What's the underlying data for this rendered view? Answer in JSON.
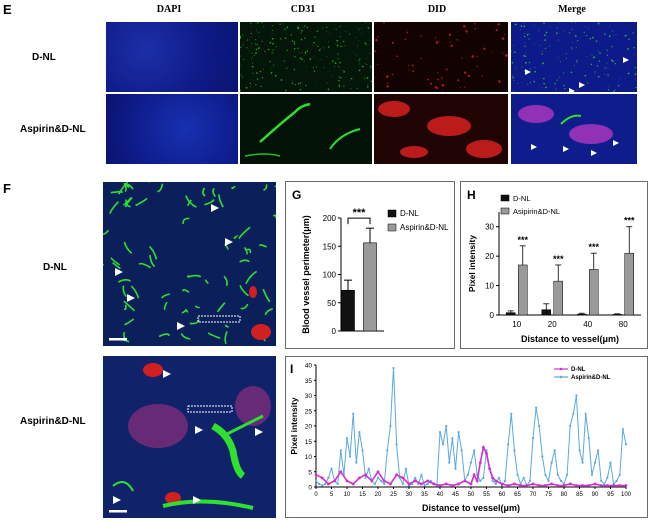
{
  "panels": {
    "E": {
      "letter": "E",
      "columns": [
        "DAPI",
        "CD31",
        "DID",
        "Merge"
      ],
      "rows": [
        "D-NL",
        "Aspirin&D-NL"
      ]
    },
    "F": {
      "letter": "F",
      "rows": [
        "D-NL",
        "Aspirin&D-NL"
      ]
    },
    "G": {
      "letter": "G"
    },
    "H": {
      "letter": "H"
    },
    "I": {
      "letter": "I"
    }
  },
  "colors": {
    "black_bar": "#111111",
    "gray_bar": "#9a9a9a",
    "dnl_line": "#d12fd1",
    "aspirin_line": "#5aa9e0",
    "dapi": "#1a1ab0",
    "cd31": "#1fbf1f",
    "did": "#c81818"
  },
  "chart_data": [
    {
      "id": "G",
      "type": "bar",
      "categories": [
        "D-NL",
        "Aspirin&D-NL"
      ],
      "values": [
        72,
        156
      ],
      "errors": [
        18,
        26
      ],
      "ylabel": "Blood vessel perimeter(μm)",
      "ylim": [
        0,
        200
      ],
      "yticks": [
        "0",
        "50",
        "100",
        "150",
        "200"
      ],
      "legend": [
        "D-NL",
        "Aspirin&D-NL"
      ],
      "significance": "***"
    },
    {
      "id": "H",
      "type": "bar",
      "categories": [
        "10",
        "20",
        "40",
        "80"
      ],
      "series": [
        {
          "name": "D-NL",
          "values": [
            0.8,
            1.8,
            0.3,
            0.2
          ],
          "errors": [
            0.6,
            2.0,
            0.3,
            0.2
          ]
        },
        {
          "name": "Asipirin&D-NL",
          "values": [
            17,
            11.5,
            15.5,
            21
          ],
          "errors": [
            6.5,
            5.5,
            5.5,
            9
          ]
        }
      ],
      "significance": [
        "***",
        "***",
        "***",
        "***"
      ],
      "xlabel": "Distance to vessel(μm)",
      "ylabel": "Pixel intensity",
      "ylim": [
        0,
        35
      ],
      "yticks": [
        "0",
        "10",
        "20",
        "30"
      ]
    },
    {
      "id": "I",
      "type": "line",
      "xlabel": "Distance to vessel(μm)",
      "ylabel": "Pixel intensity",
      "xlim": [
        0,
        100
      ],
      "ylim": [
        0,
        40
      ],
      "xticks": [
        "0",
        "5",
        "10",
        "15",
        "20",
        "25",
        "30",
        "35",
        "40",
        "45",
        "50",
        "55",
        "60",
        "65",
        "70",
        "75",
        "80",
        "85",
        "90",
        "95",
        "100"
      ],
      "yticks": [
        "0",
        "5",
        "10",
        "15",
        "20",
        "25",
        "30",
        "35",
        "40"
      ],
      "series": [
        {
          "name": "D-NL",
          "x": [
            0,
            2,
            4,
            6,
            8,
            10,
            12,
            14,
            16,
            18,
            20,
            22,
            24,
            26,
            28,
            30,
            32,
            34,
            36,
            38,
            40,
            42,
            44,
            46,
            48,
            50,
            51,
            52,
            53,
            54,
            55,
            56,
            57,
            58,
            60,
            62,
            64,
            66,
            68,
            70,
            72,
            74,
            76,
            78,
            80,
            82,
            84,
            86,
            88,
            90,
            92,
            94,
            96,
            98,
            100
          ],
          "y": [
            4,
            3,
            1,
            2,
            5,
            2,
            1,
            3,
            4,
            2,
            5,
            2,
            1,
            4,
            3,
            1,
            2,
            1,
            2,
            1,
            0.5,
            1,
            0.5,
            1,
            2,
            1,
            4,
            2,
            8,
            13,
            11,
            6,
            3,
            2,
            1,
            0.5,
            1,
            0.5,
            0.5,
            1,
            0.5,
            0.5,
            1,
            0.5,
            0.5,
            1,
            0.5,
            0.5,
            0.5,
            1,
            0.5,
            0.5,
            0.5,
            0.5,
            0.5
          ]
        },
        {
          "name": "Aspirin&D-NL",
          "x": [
            0,
            1,
            2,
            3,
            4,
            5,
            6,
            7,
            8,
            9,
            10,
            11,
            12,
            13,
            14,
            15,
            16,
            17,
            18,
            19,
            20,
            21,
            22,
            23,
            24,
            25,
            26,
            27,
            28,
            29,
            30,
            31,
            32,
            33,
            34,
            35,
            36,
            37,
            38,
            39,
            40,
            41,
            42,
            43,
            44,
            45,
            46,
            47,
            48,
            49,
            50,
            51,
            52,
            53,
            54,
            55,
            56,
            57,
            58,
            59,
            60,
            61,
            62,
            63,
            64,
            65,
            66,
            67,
            68,
            69,
            70,
            71,
            72,
            73,
            74,
            75,
            76,
            77,
            78,
            79,
            80,
            81,
            82,
            83,
            84,
            85,
            86,
            87,
            88,
            89,
            90,
            91,
            92,
            93,
            94,
            95,
            96,
            97,
            98,
            99,
            100
          ],
          "y": [
            2,
            1,
            0.5,
            1,
            3,
            6,
            2,
            1,
            12,
            4,
            16,
            10,
            24,
            8,
            18,
            12,
            3,
            6,
            2,
            1,
            3,
            2,
            1,
            12,
            20,
            39,
            14,
            3,
            1,
            6,
            0.5,
            1,
            3,
            1,
            4,
            0.5,
            1,
            2,
            1,
            0.5,
            18,
            14,
            20,
            8,
            16,
            6,
            18,
            12,
            2,
            4,
            8,
            12,
            4,
            2,
            3,
            12,
            6,
            2,
            1,
            3,
            0.5,
            2,
            14,
            24,
            12,
            4,
            1,
            3,
            0.5,
            2,
            16,
            26,
            20,
            10,
            4,
            2,
            8,
            12,
            4,
            2,
            1,
            4,
            20,
            24,
            30,
            12,
            8,
            24,
            16,
            4,
            8,
            12,
            2,
            1,
            3,
            8,
            1,
            2,
            4,
            19,
            14
          ]
        }
      ],
      "legend": [
        "D-NL",
        "Aspirin&D-NL"
      ]
    }
  ]
}
